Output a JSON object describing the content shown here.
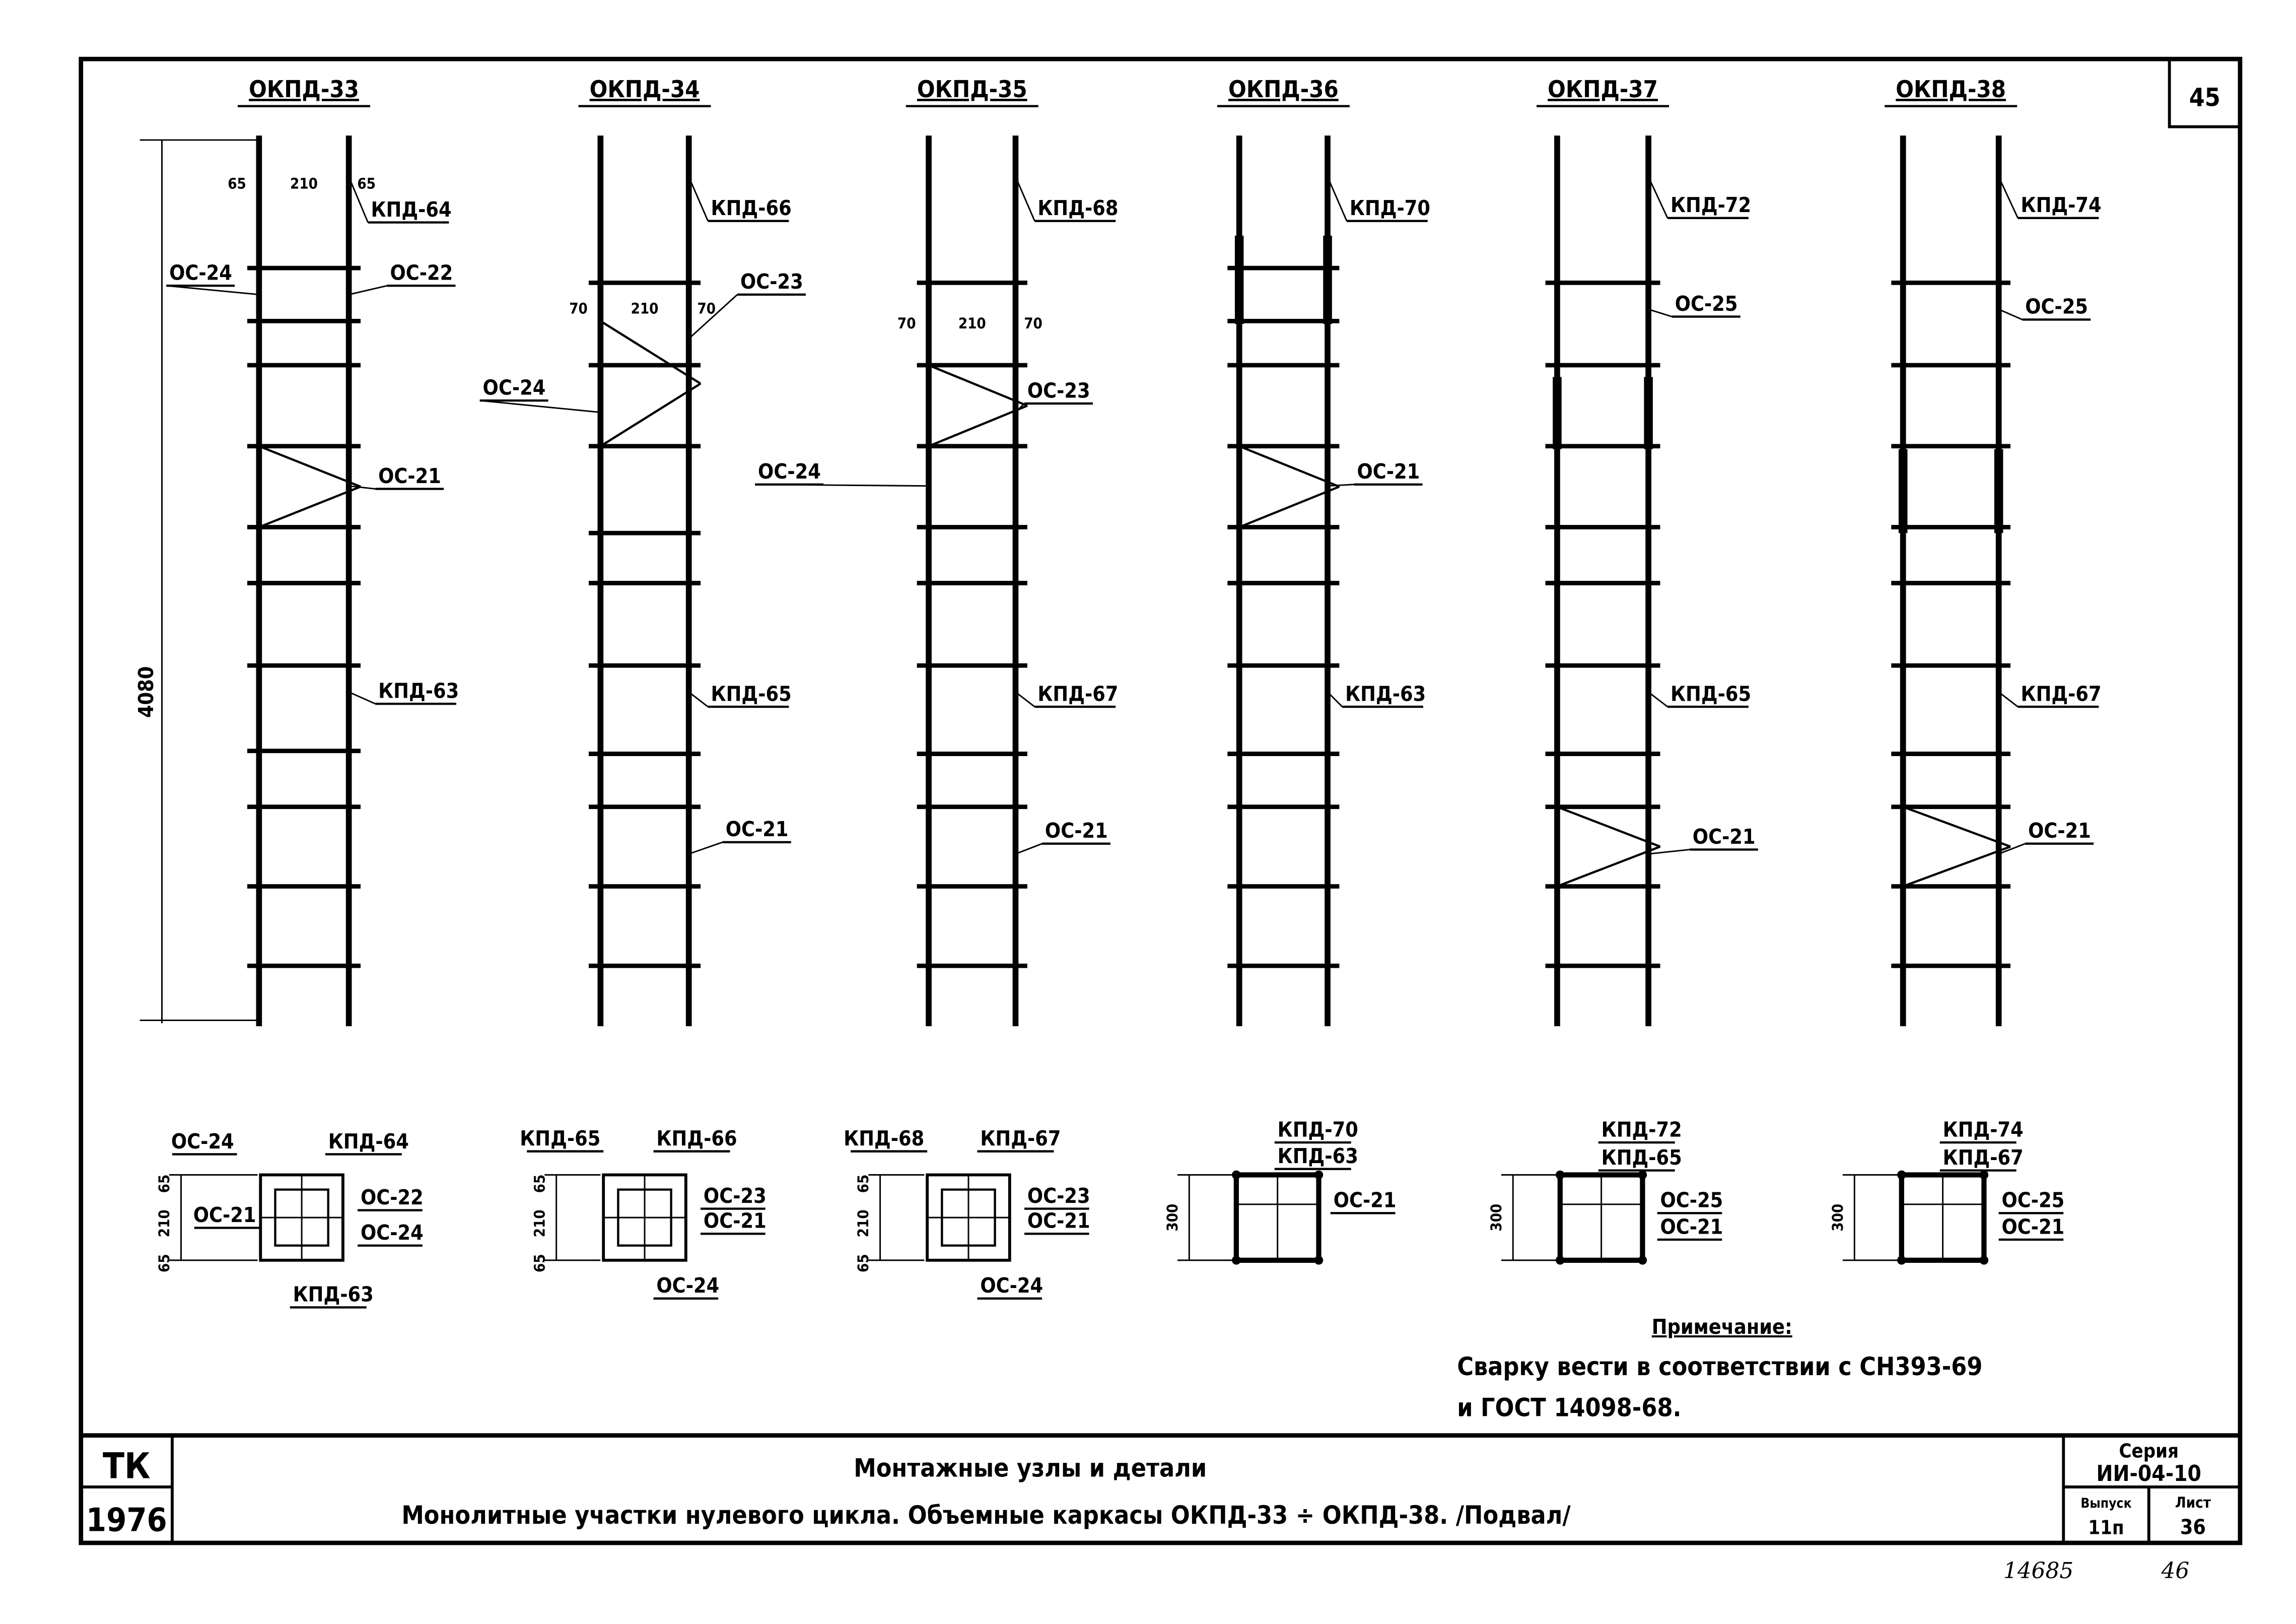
{
  "sheet_corner_number": "45",
  "elevations": [
    {
      "title": "ОКПД-33",
      "labels": [
        "КПД-64",
        "ОС-24",
        "ОС-22",
        "ОС-21",
        "КПД-63"
      ],
      "dims": [
        "65",
        "210",
        "65"
      ],
      "height_dim": "4080"
    },
    {
      "title": "ОКПД-34",
      "labels": [
        "КПД-66",
        "ОС-23",
        "ОС-24",
        "КПД-65",
        "ОС-21"
      ],
      "dims": [
        "70",
        "210",
        "70"
      ]
    },
    {
      "title": "ОКПД-35",
      "labels": [
        "КПД-68",
        "ОС-23",
        "ОС-24",
        "КПД-67",
        "ОС-21"
      ],
      "dims": [
        "70",
        "210",
        "70"
      ]
    },
    {
      "title": "ОКПД-36",
      "labels": [
        "КПД-70",
        "ОС-21",
        "КПД-63"
      ]
    },
    {
      "title": "ОКПД-37",
      "labels": [
        "КПД-72",
        "ОС-25",
        "КПД-65",
        "ОС-21"
      ]
    },
    {
      "title": "ОКПД-38",
      "labels": [
        "КПД-74",
        "ОС-25",
        "КПД-67",
        "ОС-21"
      ]
    }
  ],
  "sections": [
    {
      "labels": [
        "ОС-24",
        "КПД-64",
        "ОС-22",
        "ОС-21",
        "ОС-24",
        "КПД-63"
      ],
      "dims": [
        "65",
        "210",
        "65"
      ]
    },
    {
      "labels": [
        "КПД-65",
        "КПД-66",
        "ОС-23",
        "ОС-21",
        "ОС-24"
      ],
      "dims": [
        "65",
        "210",
        "65"
      ]
    },
    {
      "labels": [
        "КПД-68",
        "КПД-67",
        "ОС-23",
        "ОС-21",
        "ОС-24"
      ],
      "dims": [
        "65",
        "210",
        "65"
      ]
    },
    {
      "labels": [
        "КПД-70",
        "КПД-63",
        "ОС-21"
      ],
      "dims": [
        "300"
      ]
    },
    {
      "labels": [
        "КПД-72",
        "КПД-65",
        "ОС-25",
        "ОС-21"
      ],
      "dims": [
        "300"
      ]
    },
    {
      "labels": [
        "КПД-74",
        "КПД-67",
        "ОС-25",
        "ОС-21"
      ],
      "dims": [
        "300"
      ]
    }
  ],
  "note": {
    "heading": "Примечание:",
    "line1": "Сварку вести в соответствии с СН393-69",
    "line2": "и ГОСТ 14098-68."
  },
  "title_block": {
    "org": "ТК",
    "year": "1976",
    "title1": "Монтажные узлы и детали",
    "title2": "Монолитные участки нулевого цикла. Объемные каркасы ОКПД-33 ÷ ОКПД-38. /Подвал/",
    "series_label": "Серия",
    "series": "ИИ-04-10",
    "issue_label": "Выпуск",
    "issue": "11п",
    "sheet_label": "Лист",
    "sheet": "36"
  },
  "stamp_numbers": {
    "archive": "14685",
    "page": "46"
  }
}
